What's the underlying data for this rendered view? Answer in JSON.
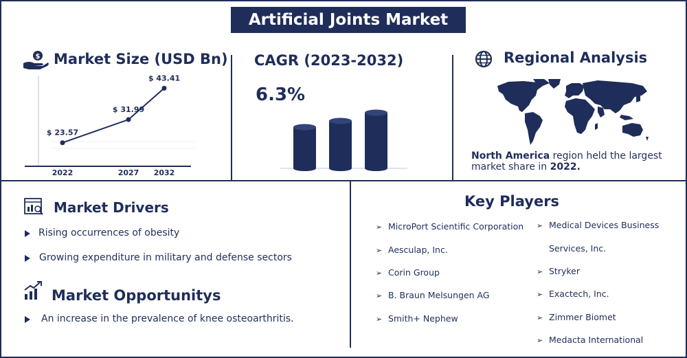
{
  "title": "Artificial Joints Market",
  "market_size": {
    "heading": "Market Size (USD Bn)",
    "icon": "money-hand-icon",
    "chart_data": {
      "type": "line",
      "categories": [
        "2022",
        "2027",
        "2032"
      ],
      "values": [
        23.57,
        31.99,
        43.41
      ],
      "value_labels": [
        "$ 23.57",
        "$ 31.99",
        "$ 43.41"
      ],
      "title": "Market Size (USD Bn)"
    }
  },
  "cagr": {
    "heading": "CAGR (2023-2032)",
    "value": "6.3%",
    "chart_data": {
      "type": "bar",
      "values": [
        1,
        1.15,
        1.35
      ]
    }
  },
  "regional": {
    "heading": "Regional Analysis",
    "icon": "globe-icon",
    "text_bold": "North America",
    "text_1": " region held the largest",
    "text_2": "market share in ",
    "year_bold": "2022."
  },
  "drivers": {
    "heading": "Market Drivers",
    "icon": "analysis-icon",
    "items": [
      "Rising occurrences of obesity",
      "Growing expenditure in military and defense sectors"
    ]
  },
  "opportunities": {
    "heading": "Market Opportunitys",
    "icon": "growth-icon",
    "items": [
      "An increase in the prevalence of knee osteoarthritis."
    ]
  },
  "key_players": {
    "heading": "Key Players",
    "col1": [
      "MicroPort Scientific Corporation",
      "Aesculap, Inc.",
      "Corin Group",
      "B. Braun Melsungen AG",
      "Smith+ Nephew"
    ],
    "col2_first_line1": "Medical Devices Business",
    "col2_first_line2": "Services, Inc.",
    "col2": [
      "Stryker",
      "Exactech, Inc.",
      "Zimmer Biomet",
      "Medacta International"
    ]
  },
  "colors": {
    "navy": "#1f2d5a",
    "grid": "#e6e8ef"
  }
}
